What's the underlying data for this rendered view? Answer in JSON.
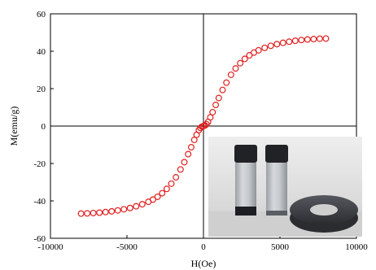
{
  "chart_data": {
    "type": "scatter",
    "title": "",
    "xlabel": "H(Oe)",
    "ylabel": "M(emu/g)",
    "xlim": [
      -10000,
      10000
    ],
    "ylim": [
      -60,
      60
    ],
    "xticks": [
      "-10000",
      "-5000",
      "0",
      "5000",
      "10000"
    ],
    "yticks": [
      "60",
      "40",
      "20",
      "0",
      "-20",
      "-40",
      "-60"
    ],
    "grid": false,
    "legend": "none",
    "marker": "open-circle",
    "marker_color": "#e02020",
    "series": [
      {
        "values_note": "",
        "x": [
          -8000,
          -7600,
          -7200,
          -6800,
          -6400,
          -6000,
          -5600,
          -5200,
          -4800,
          -4400,
          -4000,
          -3600,
          -3300,
          -3000,
          -2700,
          -2400,
          -2100,
          -1800,
          -1500,
          -1250,
          -1000,
          -800,
          -600,
          -450,
          -300,
          -200,
          -100,
          0,
          100,
          200,
          300,
          450,
          600,
          800,
          1000,
          1250,
          1500,
          1800,
          2100,
          2400,
          2700,
          3000,
          3300,
          3600,
          4000,
          4400,
          4800,
          5200,
          5600,
          6000,
          6400,
          6800,
          7200,
          7600,
          8000
        ],
        "y": [
          -46.8,
          -46.7,
          -46.5,
          -46.3,
          -46.0,
          -45.6,
          -45.1,
          -44.5,
          -43.8,
          -42.9,
          -41.8,
          -40.5,
          -39.3,
          -37.8,
          -35.9,
          -33.6,
          -30.8,
          -27.4,
          -23.2,
          -19.3,
          -15.0,
          -11.3,
          -7.4,
          -4.7,
          -2.2,
          -1.0,
          -0.3,
          0.0,
          0.3,
          1.0,
          2.2,
          4.7,
          7.4,
          11.3,
          15.0,
          19.3,
          23.2,
          27.4,
          30.8,
          33.6,
          35.9,
          37.8,
          39.3,
          40.5,
          41.8,
          42.9,
          43.8,
          44.5,
          45.1,
          45.6,
          46.0,
          46.3,
          46.5,
          46.7,
          46.8
        ]
      }
    ]
  },
  "inset": {
    "content": "photo of two vials and a ring magnet"
  },
  "colors": {
    "marker": "#e02020",
    "axis": "#000000",
    "inset_background": "#dcdcdc",
    "vial_liquid_dark": "#1c1e24",
    "magnet": "#3b3e44"
  }
}
